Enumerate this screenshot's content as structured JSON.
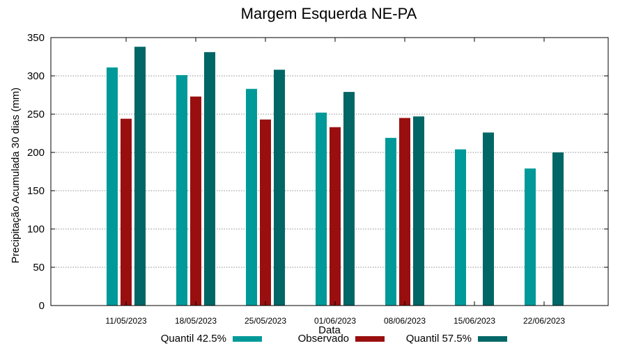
{
  "chart_data": {
    "type": "bar",
    "title": "Margem Esquerda NE-PA",
    "xlabel": "Data",
    "ylabel": "Precipitação Acumulada 30 dias (mm)",
    "ylim": [
      0,
      350
    ],
    "yticks": [
      0,
      50,
      100,
      150,
      200,
      250,
      300,
      350
    ],
    "grid": true,
    "legend_position": "bottom",
    "categories": [
      "11/05/2023",
      "18/05/2023",
      "25/05/2023",
      "01/06/2023",
      "08/06/2023",
      "15/06/2023",
      "22/06/2023"
    ],
    "series": [
      {
        "name": "Quantil 42.5%",
        "color": "#009999",
        "values": [
          311,
          301,
          283,
          252,
          219,
          204,
          179
        ]
      },
      {
        "name": "Observado",
        "color": "#990f0f",
        "values": [
          244,
          273,
          243,
          233,
          245,
          null,
          null
        ]
      },
      {
        "name": "Quantil 57.5%",
        "color": "#006666",
        "values": [
          338,
          331,
          308,
          279,
          247,
          226,
          200
        ]
      }
    ]
  }
}
